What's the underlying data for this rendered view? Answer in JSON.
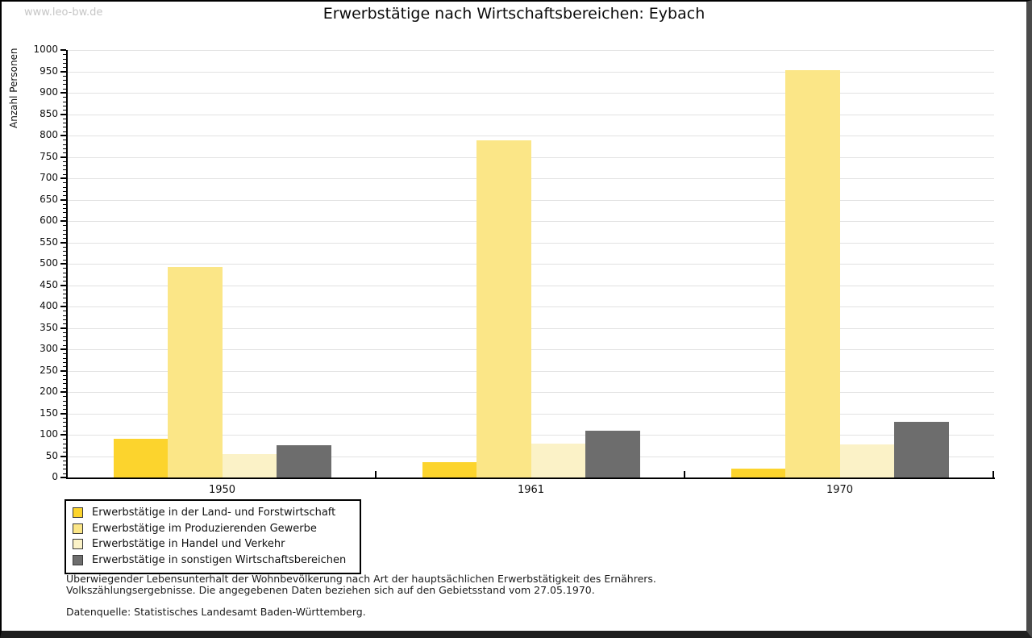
{
  "watermark": "www.leo-bw.de",
  "chart_data": {
    "type": "bar",
    "title": "Erwerbstätige nach Wirtschaftsbereichen: Eybach",
    "categories": [
      "1950",
      "1961",
      "1970"
    ],
    "series": [
      {
        "name": "Erwerbstätige in der Land- und Forstwirtschaft",
        "color": "#fcd42d",
        "values": [
          90,
          35,
          20
        ]
      },
      {
        "name": "Erwerbstätige im Produzierenden Gewerbe",
        "color": "#fbe687",
        "values": [
          493,
          788,
          953
        ]
      },
      {
        "name": "Erwerbstätige in Handel und Verkehr",
        "color": "#fbf2c7",
        "values": [
          55,
          80,
          77
        ]
      },
      {
        "name": "Erwerbstätige in sonstigen Wirtschaftsbereichen",
        "color": "#6d6d6d",
        "values": [
          75,
          110,
          131
        ]
      }
    ],
    "xlabel": "",
    "ylabel": "Anzahl Personen",
    "ylim": [
      0,
      1000
    ],
    "ytick_step": 50,
    "yminor_step": 10,
    "grid": true,
    "gridline_color": "#e2e2e2",
    "legend_position": "bottom-left"
  },
  "footer": {
    "line1": "Überwiegender Lebensunterhalt der Wohnbevölkerung nach Art der hauptsächlichen Erwerbstätigkeit des Ernährers.",
    "line2": "Volkszählungsergebnisse. Die angegebenen Daten beziehen sich auf den Gebietsstand vom 27.05.1970.",
    "source": "Datenquelle: Statistisches Landesamt Baden-Württemberg."
  }
}
